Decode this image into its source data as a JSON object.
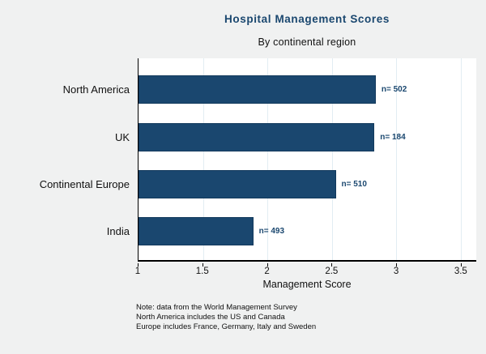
{
  "chart_data": {
    "type": "bar",
    "orientation": "horizontal",
    "title": "Hospital Management Scores",
    "subtitle": "By continental region",
    "categories": [
      "North America",
      "UK",
      "Continental Europe",
      "India"
    ],
    "values": [
      2.84,
      2.83,
      2.53,
      1.89
    ],
    "bar_labels": [
      "n= 502",
      "n= 184",
      "n= 510",
      "n= 493"
    ],
    "xlabel": "Management Score",
    "xticks": [
      "1",
      "1.5",
      "2",
      "2.5",
      "3",
      "3.5"
    ],
    "xtick_values": [
      1,
      1.5,
      2,
      2.5,
      3,
      3.5
    ],
    "xlim": [
      1,
      3.62
    ],
    "grid": true,
    "legend": "none",
    "bar_color": "#1A476F",
    "gridline_color": "#e2edf3",
    "notes": [
      "Note: data from the World Management Survey",
      "North America includes the US and Canada",
      "Europe includes France, Germany, Italy and Sweden"
    ]
  }
}
